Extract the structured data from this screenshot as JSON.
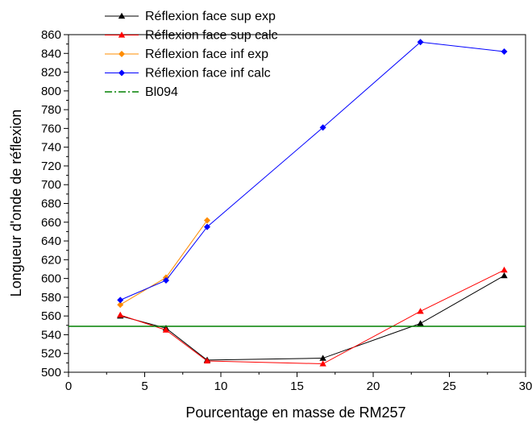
{
  "chart_data": {
    "type": "line",
    "xlabel": "Pourcentage en masse de RM257",
    "ylabel": "Longueur d'onde de réflexion",
    "xlim": [
      0,
      30
    ],
    "ylim": [
      500,
      860
    ],
    "xticks": [
      0,
      5,
      10,
      15,
      20,
      25,
      30
    ],
    "yticks": [
      500,
      520,
      540,
      560,
      580,
      600,
      620,
      640,
      660,
      680,
      700,
      720,
      740,
      760,
      780,
      800,
      820,
      840,
      860
    ],
    "grid": false,
    "legend_position": "top-left",
    "series": [
      {
        "name": "Réflexion face sup exp",
        "color": "#000000",
        "marker": "triangle",
        "x": [
          3.4,
          6.4,
          9.1,
          16.7,
          23.1,
          28.6
        ],
        "y": [
          560,
          547,
          513,
          515,
          552,
          603
        ]
      },
      {
        "name": "Réflexion face sup calc",
        "color": "#ff0000",
        "marker": "triangle",
        "x": [
          3.4,
          6.4,
          9.1,
          16.7,
          23.1,
          28.6
        ],
        "y": [
          561,
          545,
          512,
          509,
          565,
          609
        ]
      },
      {
        "name": "Réflexion face inf exp",
        "color": "#ff8c00",
        "marker": "diamond",
        "x": [
          3.4,
          6.4,
          9.1
        ],
        "y": [
          572,
          601,
          662
        ]
      },
      {
        "name": "Réflexion face inf calc",
        "color": "#0000ff",
        "marker": "diamond",
        "x": [
          3.4,
          6.4,
          9.1,
          16.7,
          23.1,
          28.6
        ],
        "y": [
          577,
          598,
          655,
          761,
          852,
          842
        ]
      },
      {
        "name": "Bl094",
        "color": "#008000",
        "marker": "none",
        "linestyle": "dash-dot",
        "type": "hline",
        "y": 549
      }
    ]
  }
}
